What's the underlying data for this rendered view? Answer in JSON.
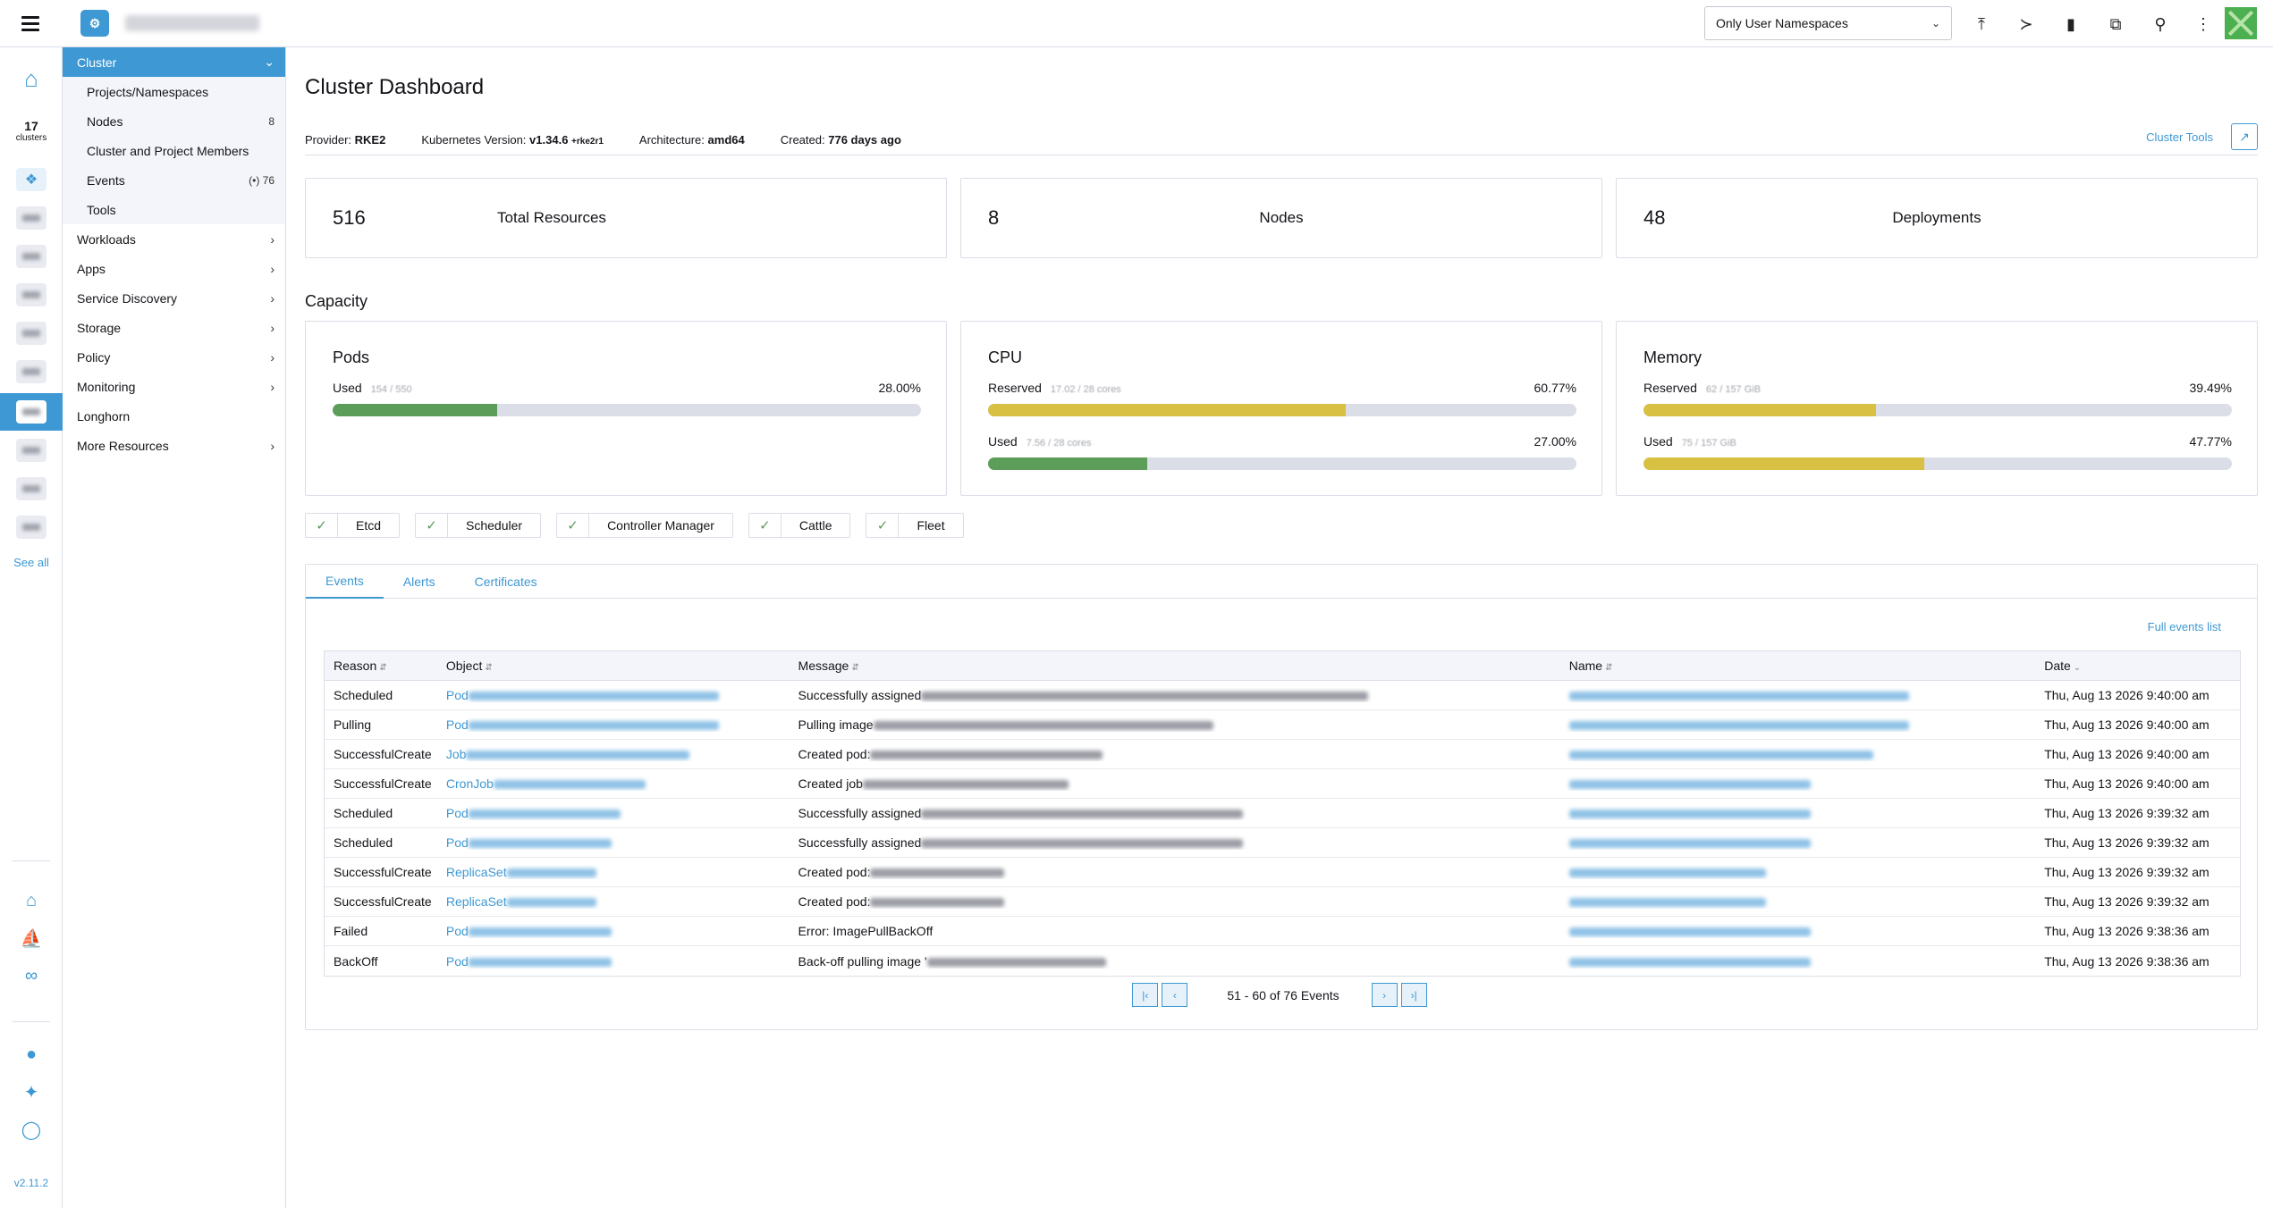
{
  "topbar": {
    "namespace_filter": "Only User Namespaces",
    "icons": [
      "upload-icon",
      "terminal-icon",
      "file-icon",
      "copy-icon",
      "search-icon",
      "more-icon"
    ]
  },
  "rail": {
    "cluster_count": "17",
    "cluster_count_label": "clusters",
    "see_all": "See all",
    "version": "v2.11.2"
  },
  "sidenav": {
    "group": "Cluster",
    "sub_items": [
      {
        "label": "Projects/Namespaces",
        "count": ""
      },
      {
        "label": "Nodes",
        "count": "8"
      },
      {
        "label": "Cluster and Project Members",
        "count": ""
      },
      {
        "label": "Events",
        "count": "(•) 76"
      },
      {
        "label": "Tools",
        "count": ""
      }
    ],
    "items": [
      {
        "label": "Workloads",
        "arrow": true
      },
      {
        "label": "Apps",
        "arrow": true
      },
      {
        "label": "Service Discovery",
        "arrow": true
      },
      {
        "label": "Storage",
        "arrow": true
      },
      {
        "label": "Policy",
        "arrow": true
      },
      {
        "label": "Monitoring",
        "arrow": true
      },
      {
        "label": "Longhorn",
        "arrow": false
      },
      {
        "label": "More Resources",
        "arrow": true
      }
    ]
  },
  "page": {
    "title": "Cluster Dashboard",
    "provider_label": "Provider:",
    "provider": "RKE2",
    "k8s_label": "Kubernetes Version:",
    "k8s_version": "v1.34.6",
    "k8s_suffix": "+rke2r1",
    "arch_label": "Architecture:",
    "arch": "amd64",
    "created_label": "Created:",
    "created": "776 days ago",
    "cluster_tools": "Cluster Tools"
  },
  "counts": [
    {
      "value": "516",
      "label": "Total Resources"
    },
    {
      "value": "8",
      "label": "Nodes"
    },
    {
      "value": "48",
      "label": "Deployments"
    }
  ],
  "capacity": {
    "title": "Capacity",
    "pods": {
      "title": "Pods",
      "used_label": "Used",
      "used_sub": "154 / 550",
      "used_pct": "28.00%",
      "used_fill": 0.28
    },
    "cpu": {
      "title": "CPU",
      "reserved_label": "Reserved",
      "reserved_sub": "17.02 / 28 cores",
      "reserved_pct": "60.77%",
      "reserved_fill": 0.6077,
      "used_label": "Used",
      "used_sub": "7.56 / 28 cores",
      "used_pct": "27.00%",
      "used_fill": 0.27
    },
    "memory": {
      "title": "Memory",
      "reserved_label": "Reserved",
      "reserved_sub": "62 / 157 GiB",
      "reserved_pct": "39.49%",
      "reserved_fill": 0.3949,
      "used_label": "Used",
      "used_sub": "75 / 157 GiB",
      "used_pct": "47.77%",
      "used_fill": 0.4777
    }
  },
  "colors": {
    "green": "#5d9d5a",
    "yellow": "#d7c042",
    "accent": "#3d98d3"
  },
  "components": [
    "Etcd",
    "Scheduler",
    "Controller Manager",
    "Cattle",
    "Fleet"
  ],
  "tabs": [
    "Events",
    "Alerts",
    "Certificates"
  ],
  "events": {
    "full_list": "Full events list",
    "headers": [
      "Reason",
      "Object",
      "Message",
      "Name",
      "Date"
    ],
    "rows": [
      {
        "reason": "Scheduled",
        "object": "Pod",
        "message": "Successfully assigned",
        "date": "Thu, Aug 13 2026  9:40:00 am"
      },
      {
        "reason": "Pulling",
        "object": "Pod",
        "message": "Pulling image",
        "date": "Thu, Aug 13 2026  9:40:00 am"
      },
      {
        "reason": "SuccessfulCreate",
        "object": "Job",
        "message": "Created pod:",
        "date": "Thu, Aug 13 2026  9:40:00 am"
      },
      {
        "reason": "SuccessfulCreate",
        "object": "CronJob",
        "message": "Created job",
        "date": "Thu, Aug 13 2026  9:40:00 am"
      },
      {
        "reason": "Scheduled",
        "object": "Pod",
        "message": "Successfully assigned",
        "date": "Thu, Aug 13 2026  9:39:32 am"
      },
      {
        "reason": "Scheduled",
        "object": "Pod",
        "message": "Successfully assigned",
        "date": "Thu, Aug 13 2026  9:39:32 am"
      },
      {
        "reason": "SuccessfulCreate",
        "object": "ReplicaSet",
        "message": "Created pod:",
        "date": "Thu, Aug 13 2026  9:39:32 am"
      },
      {
        "reason": "SuccessfulCreate",
        "object": "ReplicaSet",
        "message": "Created pod:",
        "date": "Thu, Aug 13 2026  9:39:32 am"
      },
      {
        "reason": "Failed",
        "object": "Pod",
        "message": "Error: ImagePullBackOff",
        "date": "Thu, Aug 13 2026  9:38:36 am"
      },
      {
        "reason": "BackOff",
        "object": "Pod",
        "message": "Back-off pulling image '",
        "date": "Thu, Aug 13 2026  9:38:36 am"
      }
    ],
    "pagination": "51 - 60 of 76 Events"
  }
}
